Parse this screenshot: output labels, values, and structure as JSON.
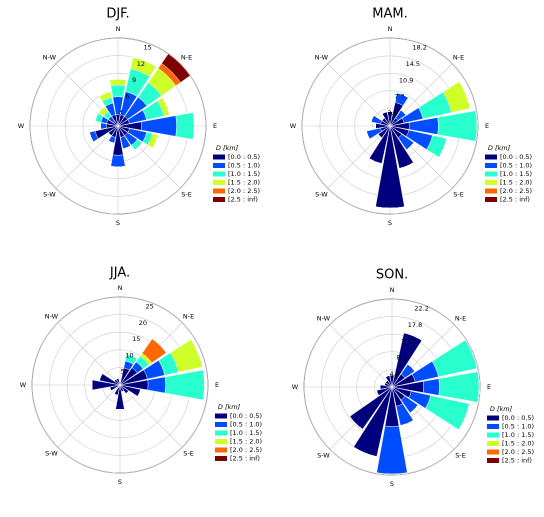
{
  "chart_data": [
    {
      "type": "windrose",
      "title": "DJF.",
      "rlim": [
        0,
        15
      ],
      "rticks": [
        3,
        6,
        9,
        12,
        15
      ],
      "legend_title": "D [km]",
      "legend": "lower right",
      "categories": [
        "N",
        null,
        "N-E",
        null,
        "E",
        null,
        "S-E",
        null,
        "S",
        null,
        "S-W",
        null,
        "W",
        null,
        "N-W",
        null
      ],
      "series": [
        {
          "name": "[0.0 : 0.5)",
          "color": "#00007f",
          "values": [
            2,
            2,
            2,
            2,
            4,
            2,
            2,
            2,
            5,
            2,
            2,
            4,
            2,
            2,
            1,
            2
          ]
        },
        {
          "name": "[0.5 : 1.0)",
          "color": "#004cff",
          "values": [
            3,
            4,
            4,
            3,
            6,
            3,
            2,
            2,
            2,
            1,
            0,
            1,
            1,
            1,
            1,
            2
          ]
        },
        {
          "name": "[1.0 : 1.5)",
          "color": "#29ffce",
          "values": [
            2,
            4,
            3,
            3,
            3,
            1,
            1,
            0,
            0,
            0,
            0,
            0,
            0,
            1,
            1,
            1
          ]
        },
        {
          "name": "[1.5 : 2.0)",
          "color": "#ceff29",
          "values": [
            1,
            2,
            3,
            1,
            0,
            1,
            0,
            0,
            0,
            0,
            0,
            0,
            0,
            0,
            1,
            1
          ]
        },
        {
          "name": "[2.0 : 2.5)",
          "color": "#ff6800",
          "values": [
            0,
            0,
            1,
            0,
            0,
            0,
            0,
            0,
            0,
            0,
            0,
            0,
            0,
            0,
            0,
            0
          ]
        },
        {
          "name": "[2.5 : inf)",
          "color": "#7f0000",
          "values": [
            0,
            0,
            2,
            0,
            0,
            0,
            0,
            0,
            0,
            0,
            0,
            0,
            0,
            0,
            0,
            0
          ]
        }
      ]
    },
    {
      "type": "windrose",
      "title": "MAM.",
      "rlim": [
        0,
        18.2
      ],
      "rticks": [
        3.6,
        7.3,
        10.9,
        14.5,
        18.2
      ],
      "legend_title": "D [km]",
      "legend": "lower right",
      "categories": [
        "N",
        null,
        "N-E",
        null,
        "E",
        null,
        "S-E",
        null,
        "S",
        null,
        "S-W",
        null,
        "W",
        null,
        "N-W",
        null
      ],
      "series": [
        {
          "name": "[0.0 : 0.5)",
          "color": "#00007f",
          "values": [
            3,
            5,
            2,
            3,
            4,
            4,
            3,
            9,
            17,
            8,
            3,
            2,
            3,
            2,
            2,
            3
          ]
        },
        {
          "name": "[0.5 : 1.0)",
          "color": "#004cff",
          "values": [
            0,
            2,
            2,
            4,
            6,
            5,
            3,
            0,
            0,
            0,
            0,
            3,
            0,
            2,
            0,
            0
          ]
        },
        {
          "name": "[1.0 : 1.5)",
          "color": "#29ffce",
          "values": [
            0,
            0,
            0,
            6,
            8,
            3,
            0,
            0,
            0,
            0,
            0,
            0,
            0,
            0,
            0,
            0
          ]
        },
        {
          "name": "[1.5 : 2.0)",
          "color": "#ceff29",
          "values": [
            0,
            0,
            0,
            4,
            0,
            0,
            0,
            0,
            0,
            0,
            0,
            0,
            0,
            0,
            0,
            0
          ]
        },
        {
          "name": "[2.0 : 2.5)",
          "color": "#ff6800",
          "values": [
            0,
            0,
            0,
            0,
            0,
            0,
            0,
            0,
            0,
            0,
            0,
            0,
            0,
            0,
            0,
            0
          ]
        },
        {
          "name": "[2.5 : inf)",
          "color": "#7f0000",
          "values": [
            0,
            0,
            0,
            0,
            0,
            0,
            0,
            0,
            0,
            0,
            0,
            0,
            0,
            0,
            0,
            0
          ]
        }
      ]
    },
    {
      "type": "windrose",
      "title": "JJA.",
      "rlim": [
        0,
        25
      ],
      "rticks": [
        5,
        10,
        15,
        20,
        25
      ],
      "legend_title": "D [km]",
      "legend": "lower right",
      "categories": [
        "N",
        null,
        "N-E",
        null,
        "E",
        null,
        "S-E",
        null,
        "S",
        null,
        "S-W",
        null,
        "W",
        null,
        "N-W",
        null
      ],
      "series": [
        {
          "name": "[0.0 : 0.5)",
          "color": "#00007f",
          "values": [
            1,
            5,
            6,
            8,
            8,
            6,
            3,
            2,
            7,
            3,
            0,
            3,
            8,
            6,
            2,
            2
          ]
        },
        {
          "name": "[0.5 : 1.0)",
          "color": "#004cff",
          "values": [
            0,
            2,
            2,
            5,
            5,
            0,
            0,
            0,
            0,
            0,
            0,
            0,
            0,
            0,
            0,
            0
          ]
        },
        {
          "name": "[1.0 : 1.5)",
          "color": "#29ffce",
          "values": [
            0,
            2,
            2,
            4,
            11,
            0,
            0,
            0,
            0,
            0,
            0,
            0,
            0,
            0,
            0,
            0
          ]
        },
        {
          "name": "[1.5 : 2.0)",
          "color": "#ceff29",
          "values": [
            0,
            0,
            1,
            7,
            0,
            0,
            0,
            0,
            0,
            0,
            0,
            0,
            0,
            0,
            0,
            0
          ]
        },
        {
          "name": "[2.0 : 2.5)",
          "color": "#ff6800",
          "values": [
            0,
            0,
            5,
            0,
            0,
            0,
            0,
            0,
            0,
            0,
            0,
            0,
            0,
            0,
            0,
            0
          ]
        },
        {
          "name": "[2.5 : inf)",
          "color": "#7f0000",
          "values": [
            0,
            0,
            0,
            0,
            0,
            0,
            0,
            0,
            0,
            0,
            0,
            0,
            0,
            0,
            0,
            0
          ]
        }
      ]
    },
    {
      "type": "windrose",
      "title": "SON.",
      "rlim": [
        0,
        22.2
      ],
      "rticks": [
        4.4,
        8.9,
        13.3,
        17.8,
        22.2
      ],
      "legend_title": "D [km]",
      "legend": "lower right",
      "categories": [
        "N",
        null,
        "N-E",
        null,
        "E",
        null,
        "S-E",
        null,
        "S",
        null,
        "S-W",
        null,
        "W",
        null,
        "N-W",
        null
      ],
      "series": [
        {
          "name": "[0.0 : 0.5)",
          "color": "#00007f",
          "values": [
            3,
            14,
            4,
            6,
            8,
            5,
            4,
            5,
            10,
            18,
            13,
            4,
            3,
            2,
            2,
            3
          ]
        },
        {
          "name": "[0.5 : 1.0)",
          "color": "#004cff",
          "values": [
            0,
            0,
            3,
            6,
            4,
            5,
            4,
            5,
            12,
            0,
            0,
            0,
            0,
            0,
            0,
            0
          ]
        },
        {
          "name": "[1.0 : 1.5)",
          "color": "#29ffce",
          "values": [
            0,
            0,
            0,
            10,
            10,
            10,
            0,
            0,
            0,
            0,
            0,
            0,
            0,
            0,
            0,
            0
          ]
        },
        {
          "name": "[1.5 : 2.0)",
          "color": "#ceff29",
          "values": [
            0,
            0,
            0,
            0,
            0,
            0,
            0,
            0,
            0,
            0,
            0,
            0,
            0,
            0,
            0,
            0
          ]
        },
        {
          "name": "[2.0 : 2.5)",
          "color": "#ff6800",
          "values": [
            0,
            0,
            0,
            0,
            0,
            0,
            0,
            0,
            0,
            0,
            0,
            0,
            0,
            0,
            0,
            0
          ]
        },
        {
          "name": "[2.5 : inf)",
          "color": "#7f0000",
          "values": [
            0,
            0,
            0,
            0,
            0,
            0,
            0,
            0,
            0,
            0,
            0,
            0,
            0,
            0,
            0,
            0
          ]
        }
      ]
    }
  ]
}
